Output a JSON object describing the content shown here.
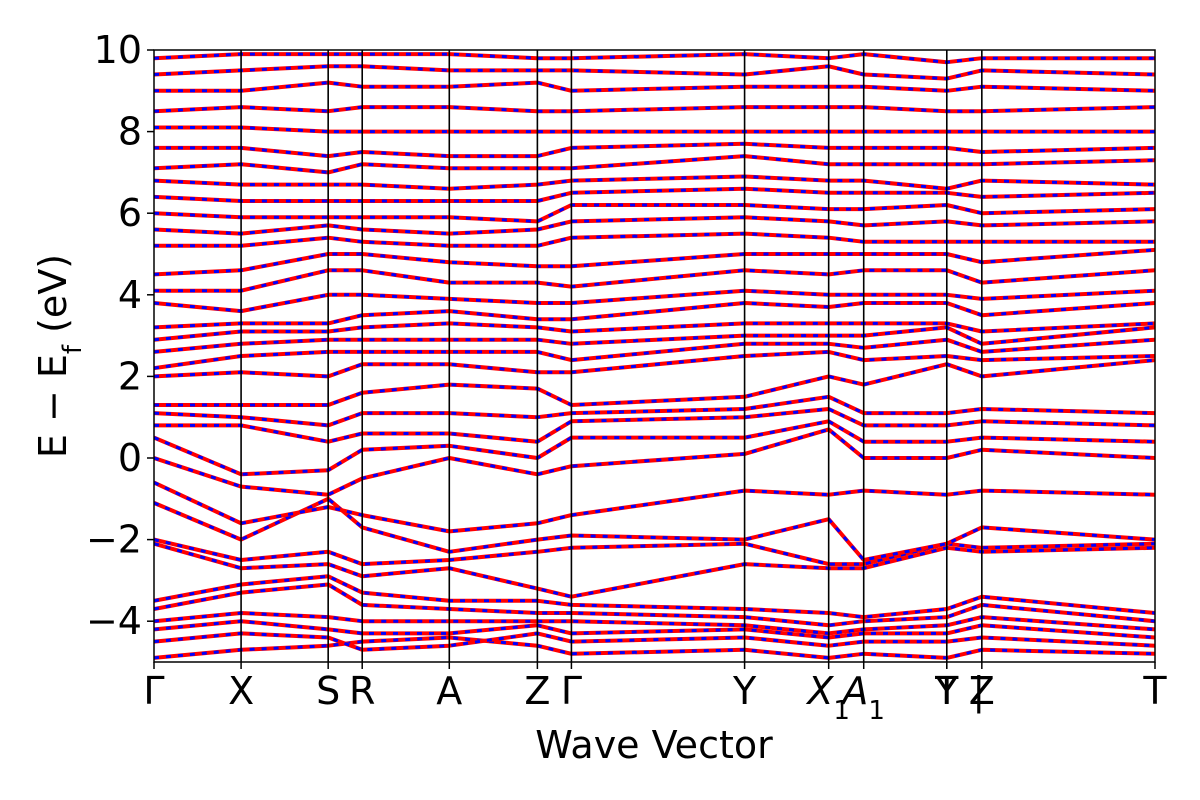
{
  "chart_data": {
    "type": "line",
    "title": "",
    "xlabel": "Wave Vector",
    "ylabel": {
      "main": "E − E",
      "subscript": "f",
      "unit": " (eV)"
    },
    "ylim": [
      -5,
      10
    ],
    "yticks": [
      -4,
      -2,
      0,
      2,
      4,
      6,
      8,
      10
    ],
    "ytick_labels": [
      "−4",
      "−2",
      "0",
      "2",
      "4",
      "6",
      "8",
      "10"
    ],
    "kpoints": [
      {
        "label": "Γ",
        "x": 0.0
      },
      {
        "label": "X",
        "x": 0.087
      },
      {
        "label": "S",
        "x": 0.174
      },
      {
        "label": "R",
        "x": 0.208
      },
      {
        "label": "A",
        "x": 0.295
      },
      {
        "label": "Z",
        "x": 0.383
      },
      {
        "label": "Γ",
        "x": 0.417
      },
      {
        "label": "Y",
        "x": 0.59
      },
      {
        "label": "X",
        "sub": "1",
        "x": 0.674
      },
      {
        "label": "A",
        "sub": "1",
        "x": 0.709
      },
      {
        "label": "T",
        "x": 0.792
      },
      {
        "label": "Y",
        "x": 0.792
      },
      {
        "label": "Z",
        "x": 0.827
      },
      {
        "label": "T",
        "x": 1.0
      }
    ],
    "vertical_lines_x": [
      0.087,
      0.174,
      0.208,
      0.295,
      0.383,
      0.417,
      0.59,
      0.674,
      0.709,
      0.792,
      0.827
    ],
    "break_x": 0.827,
    "break_label": "|",
    "series": [
      {
        "style": "red solid",
        "color": "#ff0000"
      },
      {
        "style": "blue dashed",
        "color": "#0000ff"
      }
    ],
    "bands": [
      [
        -4.9,
        -4.7,
        -4.6,
        -4.5,
        -4.4,
        -4.6,
        -4.8,
        -4.7,
        -4.9,
        -4.8,
        -4.9,
        -4.9,
        -4.7,
        -4.8
      ],
      [
        -4.5,
        -4.3,
        -4.4,
        -4.7,
        -4.6,
        -4.3,
        -4.5,
        -4.4,
        -4.6,
        -4.5,
        -4.5,
        -4.5,
        -4.4,
        -4.6
      ],
      [
        -4.2,
        -4.0,
        -4.2,
        -4.3,
        -4.3,
        -4.1,
        -4.3,
        -4.2,
        -4.4,
        -4.3,
        -4.3,
        -4.3,
        -4.1,
        -4.4
      ],
      [
        -4.0,
        -3.8,
        -3.9,
        -4.0,
        -4.0,
        -4.0,
        -4.0,
        -4.1,
        -4.3,
        -4.2,
        -4.1,
        -4.1,
        -3.9,
        -4.2
      ],
      [
        -3.7,
        -3.3,
        -3.1,
        -3.6,
        -3.7,
        -3.8,
        -3.8,
        -3.9,
        -4.1,
        -4.0,
        -3.9,
        -3.9,
        -3.6,
        -4.0
      ],
      [
        -3.5,
        -3.1,
        -2.9,
        -3.3,
        -3.5,
        -3.5,
        -3.6,
        -3.7,
        -3.8,
        -3.9,
        -3.7,
        -3.7,
        -3.4,
        -3.8
      ],
      [
        -2.1,
        -2.7,
        -2.6,
        -2.9,
        -2.7,
        -3.2,
        -3.4,
        -2.6,
        -2.7,
        -2.7,
        -2.2,
        -2.2,
        -2.3,
        -2.2
      ],
      [
        -2.0,
        -2.5,
        -2.3,
        -2.6,
        -2.5,
        -2.3,
        -2.2,
        -2.1,
        -2.6,
        -2.6,
        -2.1,
        -2.1,
        -2.2,
        -2.1
      ],
      [
        -1.1,
        -2.0,
        -1.0,
        -1.7,
        -2.3,
        -2.0,
        -1.9,
        -2.0,
        -1.5,
        -2.5,
        -2.1,
        -2.1,
        -1.7,
        -2.0
      ],
      [
        -0.6,
        -1.6,
        -1.2,
        -1.4,
        -1.8,
        -1.6,
        -1.4,
        -0.8,
        -0.9,
        -0.8,
        -0.9,
        -0.9,
        -0.8,
        -0.9
      ],
      [
        0.0,
        -0.7,
        -0.9,
        -0.5,
        0.0,
        -0.4,
        -0.2,
        0.1,
        0.7,
        0.0,
        0.0,
        0.0,
        0.2,
        0.0
      ],
      [
        0.5,
        -0.4,
        -0.3,
        0.2,
        0.3,
        0.0,
        0.5,
        0.5,
        0.9,
        0.4,
        0.4,
        0.4,
        0.5,
        0.4
      ],
      [
        0.8,
        0.8,
        0.4,
        0.6,
        0.6,
        0.4,
        0.9,
        1.0,
        1.2,
        0.8,
        0.8,
        0.8,
        0.9,
        0.8
      ],
      [
        1.1,
        1.0,
        0.8,
        1.1,
        1.1,
        1.0,
        1.1,
        1.2,
        1.5,
        1.1,
        1.1,
        1.1,
        1.2,
        1.1
      ],
      [
        1.3,
        1.3,
        1.3,
        1.6,
        1.8,
        1.7,
        1.3,
        1.5,
        2.0,
        1.8,
        2.3,
        2.3,
        2.0,
        2.4
      ],
      [
        2.0,
        2.1,
        2.0,
        2.3,
        2.3,
        2.1,
        2.1,
        2.5,
        2.6,
        2.4,
        2.5,
        2.5,
        2.4,
        2.5
      ],
      [
        2.2,
        2.5,
        2.6,
        2.6,
        2.6,
        2.6,
        2.4,
        2.8,
        2.8,
        2.7,
        2.9,
        2.9,
        2.6,
        2.9
      ],
      [
        2.6,
        2.8,
        2.9,
        2.9,
        2.9,
        2.9,
        2.8,
        3.0,
        3.0,
        3.0,
        3.2,
        3.2,
        2.8,
        3.2
      ],
      [
        2.9,
        3.1,
        3.1,
        3.2,
        3.3,
        3.2,
        3.1,
        3.3,
        3.3,
        3.3,
        3.3,
        3.3,
        3.1,
        3.3
      ],
      [
        3.2,
        3.3,
        3.3,
        3.5,
        3.6,
        3.4,
        3.4,
        3.8,
        3.7,
        3.8,
        3.8,
        3.8,
        3.5,
        3.8
      ],
      [
        3.8,
        3.6,
        4.0,
        4.0,
        3.9,
        3.8,
        3.8,
        4.1,
        4.0,
        4.0,
        4.0,
        4.0,
        3.9,
        4.1
      ],
      [
        4.1,
        4.1,
        4.6,
        4.6,
        4.3,
        4.3,
        4.2,
        4.6,
        4.5,
        4.6,
        4.6,
        4.6,
        4.3,
        4.6
      ],
      [
        4.5,
        4.6,
        5.0,
        5.0,
        4.8,
        4.7,
        4.7,
        5.0,
        5.0,
        5.0,
        5.0,
        5.0,
        4.8,
        5.1
      ],
      [
        5.2,
        5.2,
        5.4,
        5.3,
        5.2,
        5.2,
        5.4,
        5.5,
        5.4,
        5.3,
        5.3,
        5.3,
        5.3,
        5.3
      ],
      [
        5.6,
        5.5,
        5.7,
        5.6,
        5.5,
        5.6,
        5.8,
        5.9,
        5.8,
        5.7,
        5.8,
        5.8,
        5.7,
        5.8
      ],
      [
        6.0,
        5.9,
        5.9,
        5.9,
        5.9,
        5.8,
        6.2,
        6.2,
        6.1,
        6.1,
        6.2,
        6.2,
        6.0,
        6.1
      ],
      [
        6.4,
        6.3,
        6.3,
        6.3,
        6.3,
        6.3,
        6.5,
        6.6,
        6.5,
        6.5,
        6.5,
        6.5,
        6.4,
        6.5
      ],
      [
        6.8,
        6.7,
        6.7,
        6.7,
        6.6,
        6.7,
        6.8,
        6.9,
        6.8,
        6.8,
        6.6,
        6.6,
        6.8,
        6.7
      ],
      [
        7.1,
        7.2,
        7.0,
        7.2,
        7.1,
        7.1,
        7.1,
        7.4,
        7.2,
        7.2,
        7.2,
        7.2,
        7.2,
        7.3
      ],
      [
        7.6,
        7.6,
        7.4,
        7.5,
        7.4,
        7.4,
        7.6,
        7.7,
        7.6,
        7.6,
        7.6,
        7.6,
        7.5,
        7.6
      ],
      [
        8.1,
        8.1,
        8.0,
        8.0,
        8.0,
        8.0,
        8.0,
        8.0,
        8.0,
        8.0,
        8.0,
        8.0,
        8.0,
        8.0
      ],
      [
        8.5,
        8.6,
        8.5,
        8.6,
        8.6,
        8.5,
        8.5,
        8.6,
        8.6,
        8.6,
        8.5,
        8.5,
        8.5,
        8.6
      ],
      [
        9.0,
        9.0,
        9.2,
        9.1,
        9.1,
        9.2,
        9.0,
        9.1,
        9.1,
        9.1,
        9.0,
        9.0,
        9.1,
        9.0
      ],
      [
        9.4,
        9.5,
        9.6,
        9.6,
        9.5,
        9.5,
        9.5,
        9.4,
        9.6,
        9.4,
        9.3,
        9.3,
        9.5,
        9.4
      ],
      [
        9.8,
        9.9,
        9.9,
        9.9,
        9.9,
        9.8,
        9.8,
        9.9,
        9.8,
        9.9,
        9.7,
        9.7,
        9.8,
        9.8
      ]
    ]
  }
}
